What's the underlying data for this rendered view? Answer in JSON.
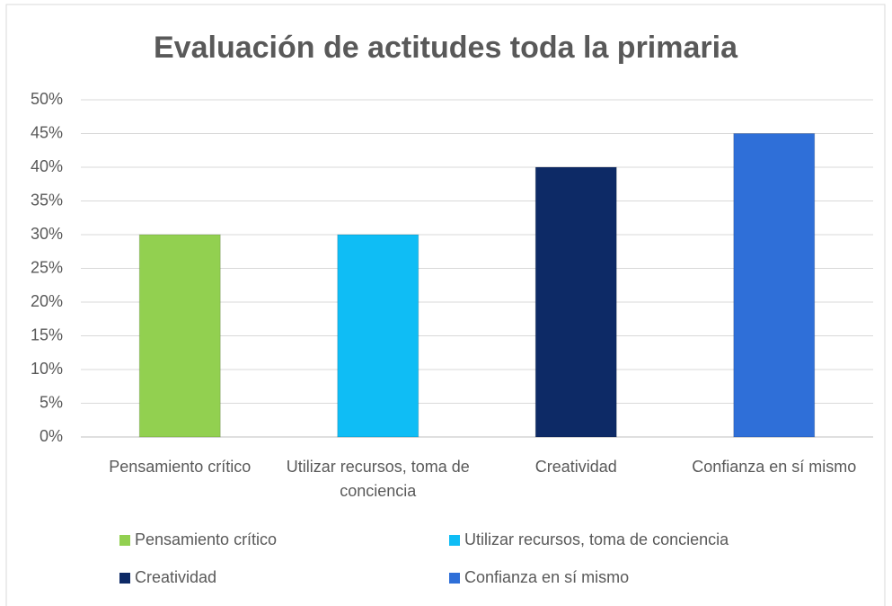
{
  "chart_data": {
    "type": "bar",
    "title": "Evaluación de actitudes  toda la primaria",
    "categories": [
      "Pensamiento crítico",
      "Utilizar recursos, toma de conciencia",
      "Creatividad",
      "Confianza en sí mismo"
    ],
    "values": [
      30,
      30,
      40,
      45
    ],
    "colors": [
      "#92d050",
      "#0fbdf5",
      "#0d2a66",
      "#2f6fd8"
    ],
    "ylim": [
      0,
      50
    ],
    "yticks": [
      {
        "value": 0,
        "label": "0%"
      },
      {
        "value": 5,
        "label": "5%"
      },
      {
        "value": 10,
        "label": "10%"
      },
      {
        "value": 15,
        "label": "15%"
      },
      {
        "value": 20,
        "label": "20%"
      },
      {
        "value": 25,
        "label": "25%"
      },
      {
        "value": 30,
        "label": "30%"
      },
      {
        "value": 35,
        "label": "35%"
      },
      {
        "value": 40,
        "label": "40%"
      },
      {
        "value": 45,
        "label": "45%"
      },
      {
        "value": 50,
        "label": "50%"
      }
    ],
    "grid": true,
    "legend": "bottom"
  }
}
